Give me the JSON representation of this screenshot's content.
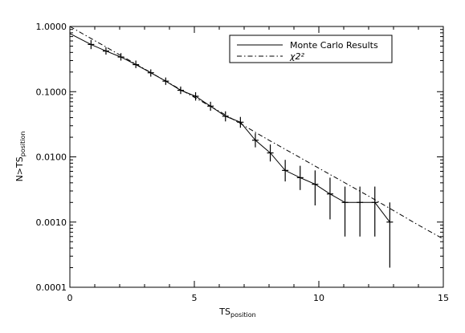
{
  "chart_data": {
    "type": "line",
    "xlabel": {
      "main": "TS",
      "sub": "position"
    },
    "ylabel": {
      "main": "N>TS",
      "sub": "position"
    },
    "xlim": [
      0,
      15
    ],
    "ylim": [
      0.0001,
      1.0
    ],
    "yscale": "log",
    "grid": false,
    "legend_position": "top-right",
    "x_ticks": [
      {
        "value": 0,
        "label": "0"
      },
      {
        "value": 5,
        "label": "5"
      },
      {
        "value": 10,
        "label": "10"
      },
      {
        "value": 15,
        "label": "15"
      }
    ],
    "y_ticks": [
      {
        "value": 1.0,
        "label": "1.0000"
      },
      {
        "value": 0.1,
        "label": "0.1000"
      },
      {
        "value": 0.01,
        "label": "0.0100"
      },
      {
        "value": 0.001,
        "label": "0.0010"
      },
      {
        "value": 0.0001,
        "label": "0.0001"
      }
    ],
    "series": [
      {
        "name": "Monte Carlo Results",
        "style": "solid",
        "points": [
          {
            "x": 0.0,
            "y": 0.78
          },
          {
            "x": 0.85,
            "y": 0.53,
            "ylow": 0.45,
            "yhigh": 0.62
          },
          {
            "x": 1.45,
            "y": 0.42,
            "ylow": 0.37,
            "yhigh": 0.48
          },
          {
            "x": 2.05,
            "y": 0.34,
            "ylow": 0.3,
            "yhigh": 0.39
          },
          {
            "x": 2.65,
            "y": 0.26,
            "ylow": 0.23,
            "yhigh": 0.3
          },
          {
            "x": 3.25,
            "y": 0.195,
            "ylow": 0.17,
            "yhigh": 0.22
          },
          {
            "x": 3.85,
            "y": 0.145,
            "ylow": 0.127,
            "yhigh": 0.165
          },
          {
            "x": 4.45,
            "y": 0.105,
            "ylow": 0.092,
            "yhigh": 0.12
          },
          {
            "x": 5.05,
            "y": 0.085,
            "ylow": 0.073,
            "yhigh": 0.098
          },
          {
            "x": 5.65,
            "y": 0.06,
            "ylow": 0.051,
            "yhigh": 0.07
          },
          {
            "x": 6.25,
            "y": 0.042,
            "ylow": 0.035,
            "yhigh": 0.05
          },
          {
            "x": 6.85,
            "y": 0.034,
            "ylow": 0.028,
            "yhigh": 0.041
          },
          {
            "x": 7.45,
            "y": 0.018,
            "ylow": 0.014,
            "yhigh": 0.023
          },
          {
            "x": 8.05,
            "y": 0.0115,
            "ylow": 0.0085,
            "yhigh": 0.0155
          },
          {
            "x": 8.65,
            "y": 0.0062,
            "ylow": 0.0042,
            "yhigh": 0.009
          },
          {
            "x": 9.25,
            "y": 0.0048,
            "ylow": 0.0031,
            "yhigh": 0.0073
          },
          {
            "x": 9.85,
            "y": 0.0038,
            "ylow": 0.0018,
            "yhigh": 0.0062
          },
          {
            "x": 10.45,
            "y": 0.0027,
            "ylow": 0.0011,
            "yhigh": 0.0048
          },
          {
            "x": 11.05,
            "y": 0.002,
            "ylow": 0.0006,
            "yhigh": 0.0035
          },
          {
            "x": 11.65,
            "y": 0.002,
            "ylow": 0.0006,
            "yhigh": 0.0035
          },
          {
            "x": 12.25,
            "y": 0.002,
            "ylow": 0.0006,
            "yhigh": 0.0035
          },
          {
            "x": 12.85,
            "y": 0.001,
            "ylow": 0.0002,
            "yhigh": 0.002
          }
        ]
      },
      {
        "name": "χ2²",
        "style": "dash-dot",
        "points": [
          {
            "x": 0.0,
            "y": 1.0
          },
          {
            "x": 1.0,
            "y": 0.607
          },
          {
            "x": 2.0,
            "y": 0.368
          },
          {
            "x": 3.0,
            "y": 0.223
          },
          {
            "x": 4.0,
            "y": 0.135
          },
          {
            "x": 5.0,
            "y": 0.082
          },
          {
            "x": 6.0,
            "y": 0.05
          },
          {
            "x": 7.0,
            "y": 0.03
          },
          {
            "x": 8.0,
            "y": 0.018
          },
          {
            "x": 9.0,
            "y": 0.011
          },
          {
            "x": 10.0,
            "y": 0.0067
          },
          {
            "x": 11.0,
            "y": 0.0041
          },
          {
            "x": 12.0,
            "y": 0.0025
          },
          {
            "x": 13.0,
            "y": 0.0015
          },
          {
            "x": 14.0,
            "y": 0.0009
          },
          {
            "x": 15.0,
            "y": 0.00055
          }
        ]
      }
    ]
  }
}
